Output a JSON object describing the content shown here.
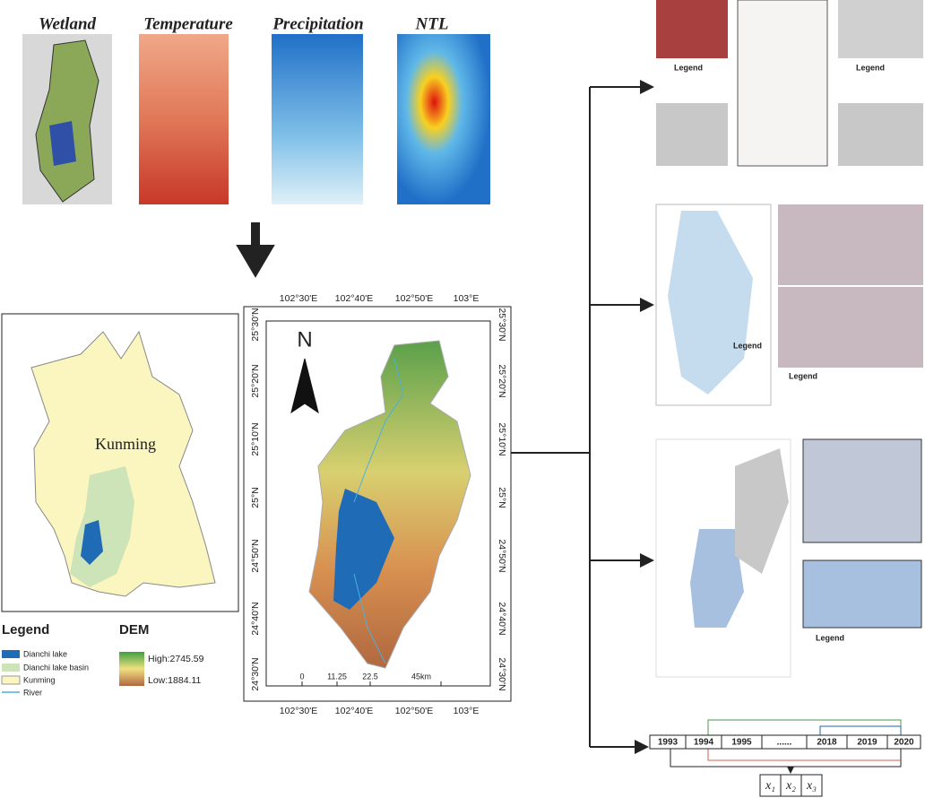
{
  "top_panels": [
    "Wetland",
    "Temperature",
    "Precipitation",
    "NTL"
  ],
  "region_map": {
    "label": "Kunming"
  },
  "legend": {
    "title": "Legend",
    "items": [
      "Dianchi lake",
      "Dianchi lake basin",
      "Kunming",
      "River"
    ]
  },
  "dem": {
    "title": "DEM",
    "high": "High:2745.59",
    "low": "Low:1884.11"
  },
  "dem_map": {
    "north": "N",
    "x_labels": [
      "102°30'E",
      "102°40'E",
      "102°50'E",
      "103°E"
    ],
    "y_labels": [
      "25°30'N",
      "25°20'N",
      "25°10'N",
      "25°N",
      "24°50'N",
      "24°40'N",
      "24°30'N"
    ],
    "scale_labels": [
      "0",
      "11.25",
      "22.5",
      "45km"
    ]
  },
  "right_panels": {
    "legend_titles": [
      "Legend",
      "Legend",
      "Legend",
      "Legend",
      "Legend"
    ]
  },
  "timeline": {
    "years": [
      "1993",
      "1994",
      "1995",
      "......",
      "2018",
      "2019",
      "2020"
    ],
    "variables": [
      "x₁",
      "x₂",
      "x₃"
    ]
  }
}
